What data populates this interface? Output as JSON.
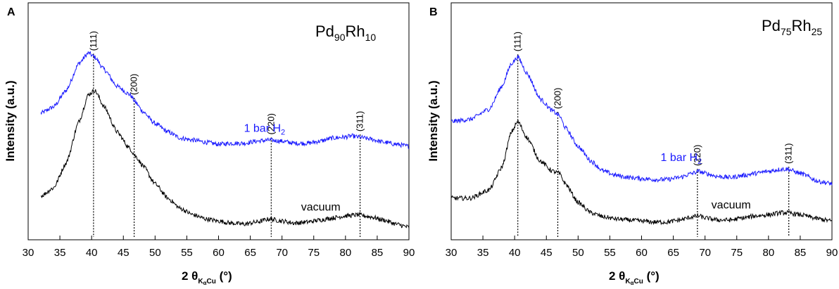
{
  "chart_data": [
    {
      "type": "line",
      "panel": "A",
      "sample": {
        "base": "Pd",
        "sub1": "90",
        "mid": "Rh",
        "sub2": "10"
      },
      "xlabel": {
        "prefix": "2 θ",
        "sub": "K",
        "subsub": "α",
        "sub2": "Cu",
        "suffix": " (°)"
      },
      "ylabel": "Intensity (a.u.)",
      "xlim": [
        30,
        90
      ],
      "xticks": [
        30,
        35,
        40,
        45,
        50,
        55,
        60,
        65,
        70,
        75,
        80,
        85,
        90
      ],
      "ylim": [
        0,
        1
      ],
      "peak_lines": [
        {
          "label": "(111)",
          "x": 40.3
        },
        {
          "label": "(200)",
          "x": 46.7
        },
        {
          "label": "(220)",
          "x": 68.3
        },
        {
          "label": "(311)",
          "x": 82.3
        }
      ],
      "series": [
        {
          "name": "1 bar H2",
          "label_main": "1 bar H",
          "label_sub": "2",
          "color": "#1a1aff",
          "x": [
            32,
            34,
            36,
            38,
            39.5,
            40.5,
            42,
            44,
            46,
            47,
            48,
            50,
            52,
            54,
            56,
            58,
            60,
            62,
            64,
            66,
            68,
            70,
            72,
            74,
            76,
            78,
            80,
            81,
            82,
            84,
            86,
            88,
            90
          ],
          "y": [
            0.59,
            0.62,
            0.7,
            0.83,
            0.88,
            0.86,
            0.8,
            0.72,
            0.68,
            0.64,
            0.6,
            0.54,
            0.5,
            0.47,
            0.46,
            0.45,
            0.44,
            0.445,
            0.445,
            0.455,
            0.46,
            0.455,
            0.445,
            0.445,
            0.455,
            0.47,
            0.475,
            0.48,
            0.475,
            0.465,
            0.45,
            0.44,
            0.43
          ]
        },
        {
          "name": "vacuum",
          "label_main": "vacuum",
          "label_sub": "",
          "color": "#000000",
          "x": [
            32,
            34,
            36,
            38,
            39.5,
            40.5,
            42,
            44,
            46,
            47,
            48,
            50,
            52,
            54,
            56,
            58,
            60,
            62,
            64,
            66,
            68,
            70,
            72,
            74,
            76,
            78,
            80,
            82,
            84,
            86,
            88,
            90
          ],
          "y": [
            0.19,
            0.23,
            0.35,
            0.55,
            0.68,
            0.7,
            0.62,
            0.5,
            0.42,
            0.38,
            0.34,
            0.25,
            0.18,
            0.13,
            0.1,
            0.08,
            0.07,
            0.06,
            0.055,
            0.065,
            0.08,
            0.07,
            0.06,
            0.065,
            0.075,
            0.085,
            0.095,
            0.1,
            0.09,
            0.075,
            0.055,
            0.04
          ]
        }
      ]
    },
    {
      "type": "line",
      "panel": "B",
      "sample": {
        "base": "Pd",
        "sub1": "75",
        "mid": "Rh",
        "sub2": "25"
      },
      "xlabel": {
        "prefix": "2 θ",
        "sub": "K",
        "subsub": "α",
        "sub2": "Cu",
        "suffix": " (°)"
      },
      "ylabel": "Intensity (a.u.)",
      "xlim": [
        30,
        90
      ],
      "xticks": [
        30,
        35,
        40,
        45,
        50,
        55,
        60,
        65,
        70,
        75,
        80,
        85,
        90
      ],
      "ylim": [
        0,
        1
      ],
      "peak_lines": [
        {
          "label": "(111)",
          "x": 40.5
        },
        {
          "label": "(200)",
          "x": 46.8
        },
        {
          "label": "(220)",
          "x": 68.8
        },
        {
          "label": "(311)",
          "x": 83.2
        }
      ],
      "series": [
        {
          "name": "1 bar H2",
          "label_main": "1 bar H",
          "label_sub": "2",
          "color": "#1a1aff",
          "x": [
            30,
            33,
            36,
            38,
            39.5,
            40.5,
            42,
            44,
            46,
            47,
            48,
            50,
            52,
            54,
            56,
            58,
            60,
            62,
            64,
            66,
            68,
            69,
            70,
            72,
            74,
            76,
            78,
            80,
            82,
            83,
            85,
            88,
            90
          ],
          "y": [
            0.55,
            0.56,
            0.61,
            0.72,
            0.83,
            0.86,
            0.78,
            0.66,
            0.6,
            0.58,
            0.52,
            0.43,
            0.36,
            0.31,
            0.29,
            0.28,
            0.275,
            0.27,
            0.27,
            0.28,
            0.3,
            0.31,
            0.3,
            0.285,
            0.28,
            0.29,
            0.3,
            0.31,
            0.32,
            0.32,
            0.3,
            0.26,
            0.25
          ]
        },
        {
          "name": "vacuum",
          "label_main": "vacuum",
          "label_sub": "",
          "color": "#000000",
          "x": [
            30,
            33,
            36,
            38,
            39.5,
            40.5,
            42,
            44,
            46,
            47,
            48,
            50,
            52,
            54,
            56,
            58,
            60,
            62,
            64,
            66,
            68,
            69,
            70,
            72,
            74,
            76,
            78,
            80,
            82,
            83,
            85,
            88,
            90
          ],
          "y": [
            0.18,
            0.18,
            0.22,
            0.33,
            0.5,
            0.55,
            0.47,
            0.36,
            0.31,
            0.3,
            0.25,
            0.16,
            0.11,
            0.09,
            0.08,
            0.075,
            0.07,
            0.065,
            0.065,
            0.075,
            0.09,
            0.095,
            0.085,
            0.075,
            0.075,
            0.085,
            0.095,
            0.1,
            0.11,
            0.11,
            0.1,
            0.08,
            0.07
          ]
        }
      ]
    }
  ],
  "text_positions": [
    {
      "series_label_x": [
        64,
        73
      ],
      "series_label_y": [
        0.5,
        0.12
      ]
    },
    {
      "series_label_x": [
        63,
        71
      ],
      "series_label_y": [
        0.36,
        0.13
      ]
    }
  ]
}
